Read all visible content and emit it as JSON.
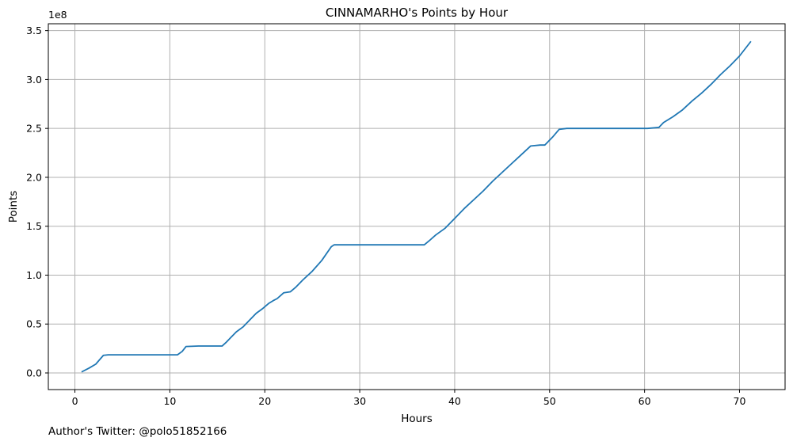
{
  "chart_data": {
    "type": "line",
    "title": "CINNAMARHO's Points by Hour",
    "xlabel": "Hours",
    "ylabel": "Points",
    "y_offset_label": "1e8",
    "xlim": [
      -2.8,
      74.8
    ],
    "ylim": [
      -0.17,
      3.57
    ],
    "xticks": [
      0,
      10,
      20,
      30,
      40,
      50,
      60,
      70
    ],
    "yticks": [
      0.0,
      0.5,
      1.0,
      1.5,
      2.0,
      2.5,
      3.0,
      3.5
    ],
    "ytick_labels": [
      "0.0",
      "0.5",
      "1.0",
      "1.5",
      "2.0",
      "2.5",
      "3.0",
      "3.5"
    ],
    "grid": true,
    "line_color": "#1f77b4",
    "series": [
      {
        "x": [
          0.7,
          1.5,
          2.2,
          3.0,
          3.5,
          10.0,
          10.8,
          11.3,
          11.7,
          13.0,
          15.5,
          15.9,
          16.4,
          17.0,
          17.7,
          18.4,
          19.1,
          19.8,
          20.4,
          20.9,
          21.3,
          22.0,
          22.7,
          23.3,
          24.0,
          25.0,
          26.0,
          27.0,
          27.3,
          29.0,
          36.8,
          37.3,
          38.0,
          39.0,
          40.0,
          41.0,
          42.0,
          43.0,
          44.0,
          45.0,
          46.0,
          47.0,
          48.0,
          49.0,
          49.5,
          50.3,
          51.0,
          51.8,
          52.5,
          60.3,
          61.5,
          62.0,
          63.0,
          64.0,
          65.0,
          66.0,
          67.0,
          68.0,
          69.0,
          70.0,
          71.2
        ],
        "y": [
          0.01,
          0.05,
          0.09,
          0.18,
          0.185,
          0.185,
          0.185,
          0.22,
          0.27,
          0.275,
          0.275,
          0.31,
          0.36,
          0.42,
          0.47,
          0.54,
          0.61,
          0.66,
          0.71,
          0.74,
          0.76,
          0.82,
          0.83,
          0.88,
          0.95,
          1.04,
          1.15,
          1.29,
          1.31,
          1.31,
          1.31,
          1.35,
          1.41,
          1.48,
          1.58,
          1.68,
          1.77,
          1.86,
          1.96,
          2.05,
          2.14,
          2.23,
          2.32,
          2.33,
          2.33,
          2.41,
          2.49,
          2.5,
          2.5,
          2.5,
          2.51,
          2.56,
          2.62,
          2.69,
          2.78,
          2.86,
          2.95,
          3.05,
          3.14,
          3.24,
          3.39
        ]
      }
    ]
  },
  "footer_text": "Author's Twitter: @polo51852166"
}
